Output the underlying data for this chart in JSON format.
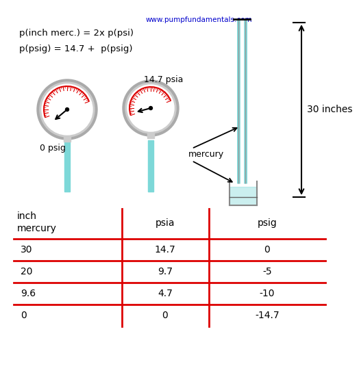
{
  "website": "www.pumpfundamentals.com",
  "website_color": "#0000cc",
  "formula1": "p(inch merc.) = 2x p(psi)",
  "formula2": "p(psig) = 14.7 +  p(psig)",
  "label_left_gauge": "0 psig",
  "label_right_gauge": "14.7 psia",
  "label_mercury": "mercury",
  "label_30inches": "30 inches",
  "table_headers": [
    "inch\nmercury",
    "psia",
    "psig"
  ],
  "table_rows": [
    [
      "30",
      "14.7",
      "0"
    ],
    [
      "20",
      "9.7",
      "-5"
    ],
    [
      "9.6",
      "4.7",
      "-10"
    ],
    [
      "0",
      "0",
      "-14.7"
    ]
  ],
  "bg_color": "#ffffff",
  "text_color": "#000000",
  "red_color": "#dd0000",
  "teal_color": "#7dd8d8",
  "gauge_outer_color": "#aaaaaa",
  "gauge_inner_color": "#ffffff",
  "gauge_ring_color": "#888888"
}
